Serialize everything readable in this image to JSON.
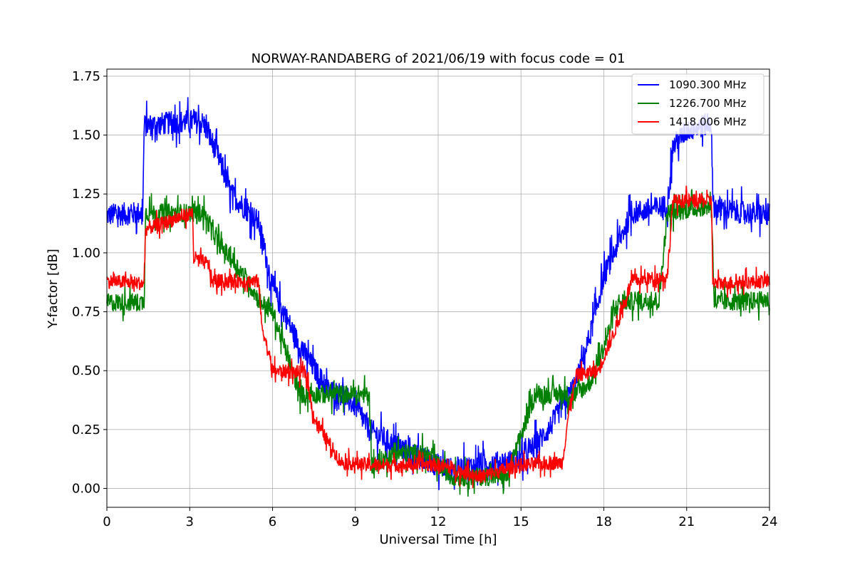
{
  "chart_data": {
    "type": "line",
    "title": "NORWAY-RANDABERG of 2021/06/19 with focus code = 01",
    "xlabel": "Universal Time [h]",
    "ylabel": "Y-factor [dB]",
    "xlim": [
      0,
      24
    ],
    "ylim": [
      -0.08,
      1.78
    ],
    "xticks": [
      0,
      3,
      6,
      9,
      12,
      15,
      18,
      21,
      24
    ],
    "xtick_labels": [
      "0",
      "3",
      "6",
      "9",
      "12",
      "15",
      "18",
      "21",
      "24"
    ],
    "yticks": [
      0.0,
      0.25,
      0.5,
      0.75,
      1.0,
      1.25,
      1.5,
      1.75
    ],
    "ytick_labels": [
      "0.00",
      "0.25",
      "0.50",
      "0.75",
      "1.00",
      "1.25",
      "1.50",
      "1.75"
    ],
    "grid": true,
    "legend_position": "top-right",
    "series": [
      {
        "name": "1090.300 MHz",
        "color": "#0000ff",
        "noise": 0.05,
        "points": [
          [
            0,
            1.16
          ],
          [
            1.3,
            1.17
          ],
          [
            1.35,
            1.54
          ],
          [
            3.0,
            1.56
          ],
          [
            3.5,
            1.55
          ],
          [
            4.0,
            1.42
          ],
          [
            4.5,
            1.25
          ],
          [
            5.5,
            1.13
          ],
          [
            6.0,
            0.85
          ],
          [
            7.0,
            0.6
          ],
          [
            8.0,
            0.42
          ],
          [
            8.5,
            0.4
          ],
          [
            9.0,
            0.35
          ],
          [
            9.5,
            0.25
          ],
          [
            10.5,
            0.18
          ],
          [
            11.5,
            0.12
          ],
          [
            12.5,
            0.08
          ],
          [
            13.5,
            0.1
          ],
          [
            15.0,
            0.12
          ],
          [
            16.0,
            0.25
          ],
          [
            17.0,
            0.45
          ],
          [
            17.5,
            0.65
          ],
          [
            18.0,
            0.9
          ],
          [
            19.0,
            1.17
          ],
          [
            19.5,
            1.18
          ],
          [
            20.3,
            1.2
          ],
          [
            20.5,
            1.45
          ],
          [
            21.0,
            1.52
          ],
          [
            21.9,
            1.55
          ],
          [
            21.95,
            1.2
          ],
          [
            22.5,
            1.18
          ],
          [
            24,
            1.16
          ]
        ]
      },
      {
        "name": "1226.700 MHz",
        "color": "#008000",
        "noise": 0.04,
        "points": [
          [
            0,
            0.79
          ],
          [
            1.35,
            0.79
          ],
          [
            1.4,
            1.17
          ],
          [
            3.0,
            1.17
          ],
          [
            3.5,
            1.17
          ],
          [
            4.0,
            1.05
          ],
          [
            5.0,
            0.9
          ],
          [
            5.5,
            0.8
          ],
          [
            6.0,
            0.75
          ],
          [
            7.0,
            0.4
          ],
          [
            9.5,
            0.4
          ],
          [
            9.6,
            0.1
          ],
          [
            10.5,
            0.15
          ],
          [
            11.5,
            0.15
          ],
          [
            12.5,
            0.05
          ],
          [
            14.5,
            0.05
          ],
          [
            15.5,
            0.4
          ],
          [
            17.0,
            0.4
          ],
          [
            17.5,
            0.45
          ],
          [
            18.0,
            0.6
          ],
          [
            18.5,
            0.79
          ],
          [
            20.0,
            0.8
          ],
          [
            20.3,
            1.17
          ],
          [
            21.9,
            1.2
          ],
          [
            22.0,
            0.79
          ],
          [
            24,
            0.8
          ]
        ]
      },
      {
        "name": "1418.006 MHz",
        "color": "#ff0000",
        "noise": 0.03,
        "points": [
          [
            0,
            0.88
          ],
          [
            1.35,
            0.87
          ],
          [
            1.4,
            1.1
          ],
          [
            3.1,
            1.17
          ],
          [
            3.15,
            0.98
          ],
          [
            3.7,
            0.95
          ],
          [
            3.8,
            0.88
          ],
          [
            5.5,
            0.88
          ],
          [
            5.6,
            0.7
          ],
          [
            6.0,
            0.5
          ],
          [
            7.2,
            0.49
          ],
          [
            7.5,
            0.3
          ],
          [
            8.0,
            0.2
          ],
          [
            8.5,
            0.11
          ],
          [
            9.5,
            0.1
          ],
          [
            12.0,
            0.1
          ],
          [
            13.5,
            0.05
          ],
          [
            15.0,
            0.1
          ],
          [
            16.5,
            0.11
          ],
          [
            16.7,
            0.3
          ],
          [
            17.0,
            0.48
          ],
          [
            17.8,
            0.5
          ],
          [
            18.5,
            0.7
          ],
          [
            19.0,
            0.88
          ],
          [
            20.3,
            0.9
          ],
          [
            20.5,
            1.22
          ],
          [
            21.9,
            1.22
          ],
          [
            21.95,
            0.87
          ],
          [
            24,
            0.88
          ]
        ]
      }
    ]
  }
}
